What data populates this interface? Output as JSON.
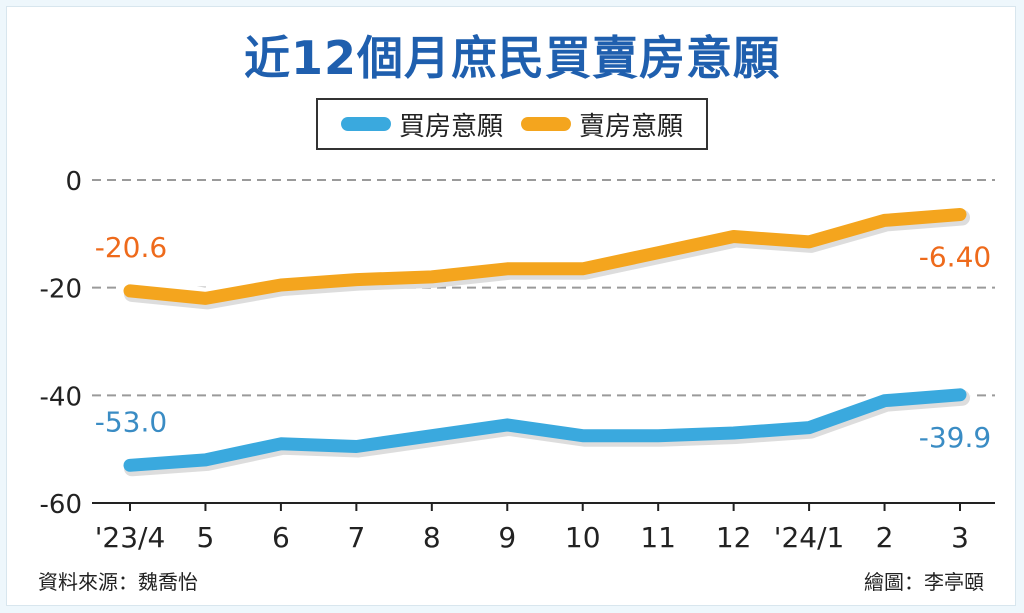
{
  "title": "近12個月庶民買賣房意願",
  "source": "資料來源：魏喬怡",
  "credit": "繪圖：李亭頤",
  "chart_data": {
    "type": "line",
    "categories": [
      "'23/4",
      "5",
      "6",
      "7",
      "8",
      "9",
      "10",
      "11",
      "12",
      "'24/1",
      "2",
      "3"
    ],
    "series": [
      {
        "name": "買房意願",
        "color": "#3aa9de",
        "values": [
          -53.0,
          -52.0,
          -49.0,
          -49.5,
          -47.5,
          -45.5,
          -47.5,
          -47.5,
          -47.0,
          -46.0,
          -41.0,
          -39.9
        ],
        "start_label": "-53.0",
        "end_label": "-39.9",
        "label_color": "#3a8cc4"
      },
      {
        "name": "賣房意願",
        "color": "#f4a51e",
        "values": [
          -20.6,
          -22.0,
          -19.5,
          -18.5,
          -18.0,
          -16.5,
          -16.5,
          -13.5,
          -10.5,
          -11.5,
          -7.5,
          -6.4
        ],
        "start_label": "-20.6",
        "end_label": "-6.40",
        "label_color": "#ee6a1b"
      }
    ],
    "yticks": [
      "0",
      "-20",
      "-40",
      "-60"
    ],
    "ylim": [
      -60,
      0
    ],
    "grid": true,
    "legend": "top-center"
  }
}
